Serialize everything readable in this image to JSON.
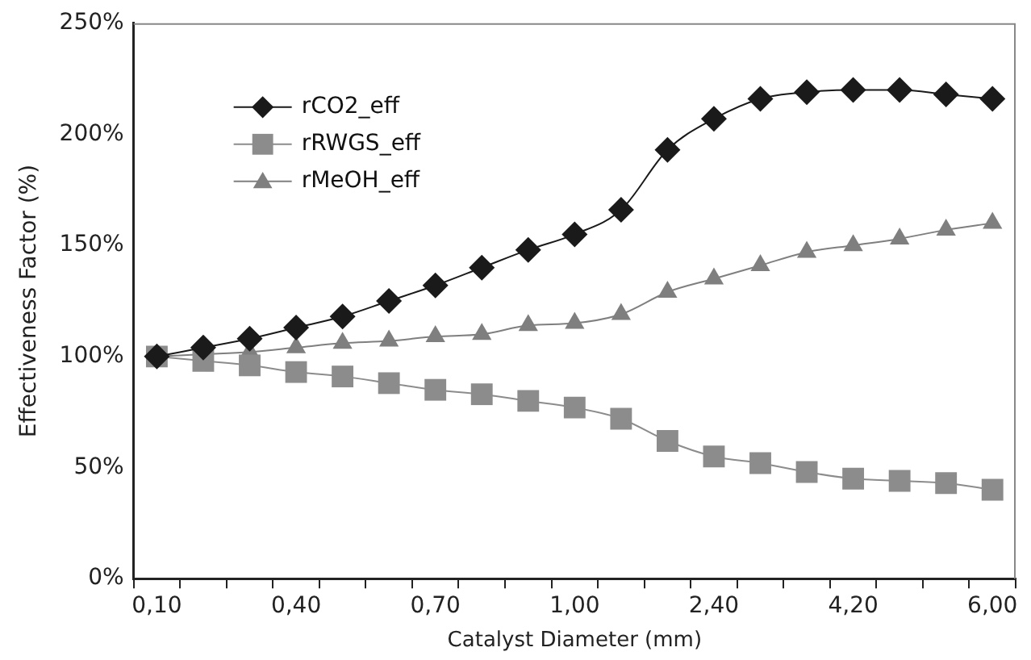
{
  "chart_data": {
    "type": "line",
    "xlabel": "Catalyst Diameter (mm)",
    "ylabel": "Effectiveness Factor (%)",
    "categories": [
      "0,10",
      null,
      null,
      "0,40",
      null,
      null,
      "0,70",
      null,
      null,
      "1,00",
      null,
      null,
      "2,40",
      null,
      null,
      "4,20",
      null,
      null,
      "6,00"
    ],
    "series": [
      {
        "name": "rCO2_eff",
        "color": "#1a1a1a",
        "marker": "diamond",
        "values": [
          100,
          104,
          108,
          113,
          118,
          125,
          132,
          140,
          148,
          155,
          166,
          193,
          207,
          216,
          219,
          220,
          220,
          218,
          216
        ]
      },
      {
        "name": "rRWGS_eff",
        "color": "#8c8c8c",
        "marker": "square",
        "values": [
          100,
          98,
          96,
          93,
          91,
          88,
          85,
          83,
          80,
          77,
          72,
          62,
          55,
          52,
          48,
          45,
          44,
          43,
          40
        ]
      },
      {
        "name": "rMeOH_eff",
        "color": "#7f7f7f",
        "marker": "triangle",
        "values": [
          100,
          101,
          102,
          104,
          106,
          107,
          109,
          110,
          114,
          115,
          119,
          129,
          135,
          141,
          147,
          150,
          153,
          157,
          160
        ]
      }
    ],
    "ylim": [
      0,
      250
    ],
    "yticks": [
      {
        "value": 0,
        "label": "0%"
      },
      {
        "value": 50,
        "label": "50%"
      },
      {
        "value": 100,
        "label": "100%"
      },
      {
        "value": 150,
        "label": "150%"
      },
      {
        "value": 200,
        "label": "200%"
      },
      {
        "value": 250,
        "label": "250%"
      }
    ],
    "grid": false,
    "legend": "top left",
    "line_style": "solid"
  }
}
